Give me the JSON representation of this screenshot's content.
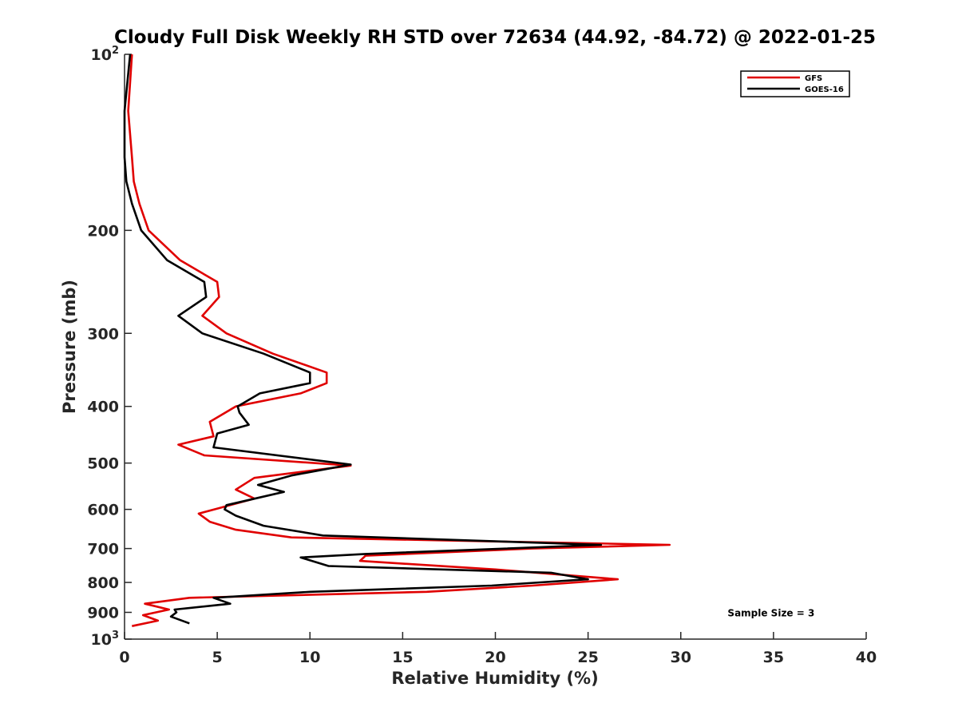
{
  "chart_data": {
    "type": "line",
    "title": "Cloudy Full Disk Weekly RH STD over 72634 (44.92, -84.72) @ 2022-01-25",
    "xlabel": "Relative Humidity (%)",
    "ylabel": "Pressure (mb)",
    "xlim": [
      0,
      40
    ],
    "ylim": [
      100,
      1000
    ],
    "y_scale": "log",
    "y_reversed": true,
    "grid": false,
    "legend_position": "top-right",
    "x_ticks": [
      "0",
      "5",
      "10",
      "15",
      "20",
      "25",
      "30",
      "35",
      "40"
    ],
    "y_ticks": [
      {
        "value": 100,
        "base": "10",
        "exp": "2"
      },
      {
        "value": 200,
        "base": "200",
        "exp": ""
      },
      {
        "value": 300,
        "base": "300",
        "exp": ""
      },
      {
        "value": 400,
        "base": "400",
        "exp": ""
      },
      {
        "value": 500,
        "base": "500",
        "exp": ""
      },
      {
        "value": 600,
        "base": "600",
        "exp": ""
      },
      {
        "value": 700,
        "base": "700",
        "exp": ""
      },
      {
        "value": 800,
        "base": "800",
        "exp": ""
      },
      {
        "value": 900,
        "base": "900",
        "exp": ""
      },
      {
        "value": 1000,
        "base": "10",
        "exp": "3"
      }
    ],
    "series": [
      {
        "name": "GFS",
        "color": "#e00000",
        "points": [
          [
            0.4,
            100
          ],
          [
            0.2,
            125
          ],
          [
            0.4,
            150
          ],
          [
            0.5,
            165
          ],
          [
            0.8,
            180
          ],
          [
            1.3,
            200
          ],
          [
            3.0,
            225
          ],
          [
            5.0,
            245
          ],
          [
            5.1,
            260
          ],
          [
            4.2,
            280
          ],
          [
            5.5,
            300
          ],
          [
            8.0,
            325
          ],
          [
            10.9,
            350
          ],
          [
            10.9,
            365
          ],
          [
            9.5,
            380
          ],
          [
            6.0,
            400
          ],
          [
            4.6,
            425
          ],
          [
            4.8,
            450
          ],
          [
            2.9,
            465
          ],
          [
            4.3,
            485
          ],
          [
            12.2,
            505
          ],
          [
            7.0,
            530
          ],
          [
            6.0,
            555
          ],
          [
            7.0,
            575
          ],
          [
            5.7,
            590
          ],
          [
            4.0,
            610
          ],
          [
            4.6,
            630
          ],
          [
            6.0,
            650
          ],
          [
            9.0,
            670
          ],
          [
            29.4,
            690
          ],
          [
            22.0,
            700
          ],
          [
            13.0,
            720
          ],
          [
            12.7,
            735
          ],
          [
            20.0,
            760
          ],
          [
            26.6,
            790
          ],
          [
            22.0,
            810
          ],
          [
            16.3,
            830
          ],
          [
            3.5,
            850
          ],
          [
            1.1,
            870
          ],
          [
            2.4,
            890
          ],
          [
            1.0,
            910
          ],
          [
            1.8,
            930
          ],
          [
            0.4,
            950
          ]
        ]
      },
      {
        "name": "GOES-16",
        "color": "#000000",
        "points": [
          [
            0.3,
            100
          ],
          [
            0.0,
            125
          ],
          [
            0.0,
            150
          ],
          [
            0.1,
            165
          ],
          [
            0.4,
            180
          ],
          [
            0.9,
            200
          ],
          [
            2.3,
            225
          ],
          [
            4.3,
            245
          ],
          [
            4.4,
            260
          ],
          [
            2.9,
            280
          ],
          [
            4.2,
            300
          ],
          [
            7.5,
            325
          ],
          [
            10.0,
            350
          ],
          [
            10.0,
            365
          ],
          [
            7.3,
            380
          ],
          [
            6.1,
            400
          ],
          [
            6.2,
            410
          ],
          [
            6.7,
            430
          ],
          [
            5.0,
            445
          ],
          [
            4.8,
            470
          ],
          [
            12.2,
            503
          ],
          [
            9.0,
            525
          ],
          [
            7.2,
            545
          ],
          [
            8.6,
            560
          ],
          [
            5.5,
            590
          ],
          [
            5.4,
            600
          ],
          [
            6.0,
            615
          ],
          [
            7.5,
            640
          ],
          [
            10.7,
            665
          ],
          [
            25.7,
            690
          ],
          [
            13.0,
            715
          ],
          [
            9.5,
            725
          ],
          [
            11.0,
            750
          ],
          [
            23.0,
            770
          ],
          [
            25.0,
            790
          ],
          [
            19.8,
            810
          ],
          [
            10.0,
            830
          ],
          [
            4.8,
            850
          ],
          [
            5.7,
            870
          ],
          [
            2.7,
            890
          ],
          [
            2.8,
            900
          ],
          [
            2.5,
            915
          ],
          [
            3.5,
            940
          ]
        ]
      }
    ],
    "annotations": [
      {
        "text": "Sample Size = 3",
        "x": 35,
        "y": 900
      }
    ]
  }
}
